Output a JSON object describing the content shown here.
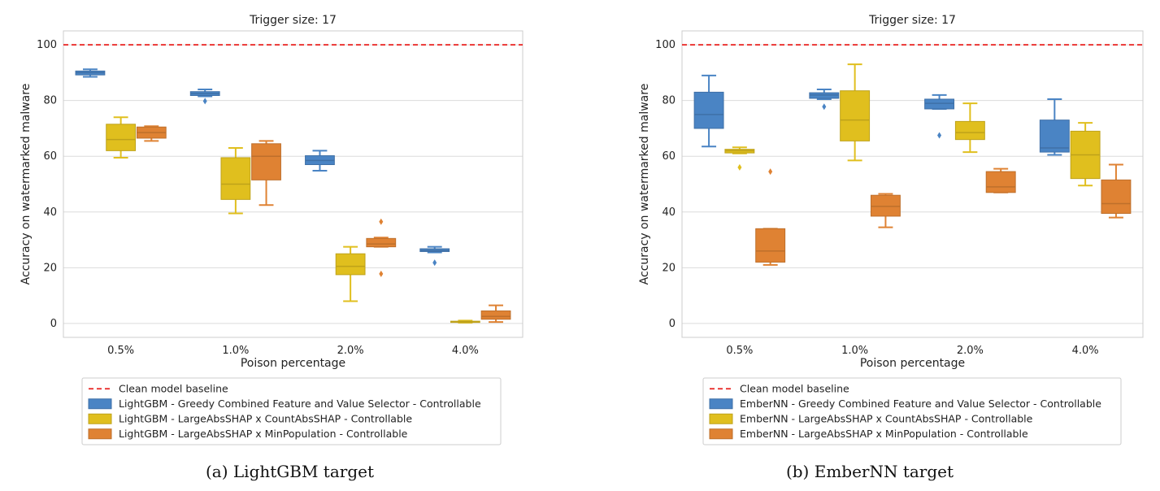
{
  "chart_data": [
    {
      "type": "box",
      "title": "Trigger size: 17",
      "xlabel": "Poison percentage",
      "ylabel": "Accuracy on watermarked malware",
      "categories": [
        "0.5%",
        "1.0%",
        "2.0%",
        "4.0%"
      ],
      "ylim": [
        -5,
        105
      ],
      "yticks": [
        0,
        20,
        40,
        60,
        80,
        100
      ],
      "grid": "horizontal",
      "legend_position": "bottom",
      "baseline": {
        "name": "Clean model baseline",
        "value": 100,
        "color": "#e8211f"
      },
      "series": [
        {
          "name": "LightGBM - Greedy Combined Feature and Value Selector - Controllable",
          "color": "#4a84c4",
          "boxes": [
            {
              "whislo": 88.5,
              "q1": 89.2,
              "med": 90.0,
              "q3": 90.6,
              "whishi": 91.2,
              "fliers": []
            },
            {
              "whislo": 81.5,
              "q1": 81.8,
              "med": 82.5,
              "q3": 83.2,
              "whishi": 84.0,
              "fliers": [
                79.8
              ]
            },
            {
              "whislo": 54.8,
              "q1": 57.0,
              "med": 58.5,
              "q3": 60.2,
              "whishi": 62.0,
              "fliers": []
            },
            {
              "whislo": 25.5,
              "q1": 25.8,
              "med": 26.2,
              "q3": 26.8,
              "whishi": 27.5,
              "fliers": [
                21.8
              ]
            }
          ]
        },
        {
          "name": "LightGBM - LargeAbsSHAP x CountAbsSHAP - Controllable",
          "color": "#e0bf1e",
          "boxes": [
            {
              "whislo": 59.5,
              "q1": 62.0,
              "med": 66.0,
              "q3": 71.5,
              "whishi": 74.0,
              "fliers": []
            },
            {
              "whislo": 39.5,
              "q1": 44.5,
              "med": 50.0,
              "q3": 59.5,
              "whishi": 63.0,
              "fliers": []
            },
            {
              "whislo": 8.0,
              "q1": 17.5,
              "med": 20.5,
              "q3": 25.0,
              "whishi": 27.5,
              "fliers": []
            },
            {
              "whislo": 0.3,
              "q1": 0.5,
              "med": 0.6,
              "q3": 0.8,
              "whishi": 1.0,
              "fliers": []
            }
          ]
        },
        {
          "name": "LightGBM - LargeAbsSHAP x MinPopulation - Controllable",
          "color": "#df8233",
          "boxes": [
            {
              "whislo": 65.5,
              "q1": 66.5,
              "med": 68.5,
              "q3": 70.5,
              "whishi": 70.8,
              "fliers": []
            },
            {
              "whislo": 42.5,
              "q1": 51.5,
              "med": 60.0,
              "q3": 64.5,
              "whishi": 65.5,
              "fliers": []
            },
            {
              "whislo": 27.5,
              "q1": 27.5,
              "med": 28.5,
              "q3": 30.5,
              "whishi": 30.8,
              "fliers": [
                36.5,
                17.8
              ]
            },
            {
              "whislo": 0.5,
              "q1": 1.5,
              "med": 2.5,
              "q3": 4.5,
              "whishi": 6.5,
              "fliers": []
            }
          ]
        }
      ],
      "caption": "(a) LightGBM target"
    },
    {
      "type": "box",
      "title": "Trigger size: 17",
      "xlabel": "Poison percentage",
      "ylabel": "Accuracy on watermarked malware",
      "categories": [
        "0.5%",
        "1.0%",
        "2.0%",
        "4.0%"
      ],
      "ylim": [
        -5,
        105
      ],
      "yticks": [
        0,
        20,
        40,
        60,
        80,
        100
      ],
      "grid": "horizontal",
      "legend_position": "bottom",
      "baseline": {
        "name": "Clean model baseline",
        "value": 100,
        "color": "#e8211f"
      },
      "series": [
        {
          "name": "EmberNN - Greedy Combined Feature and Value Selector - Controllable",
          "color": "#4a84c4",
          "boxes": [
            {
              "whislo": 63.5,
              "q1": 70.0,
              "med": 75.0,
              "q3": 83.0,
              "whishi": 89.0,
              "fliers": []
            },
            {
              "whislo": 80.5,
              "q1": 80.8,
              "med": 82.0,
              "q3": 82.8,
              "whishi": 84.0,
              "fliers": [
                77.8
              ]
            },
            {
              "whislo": 77.0,
              "q1": 77.0,
              "med": 79.0,
              "q3": 80.5,
              "whishi": 82.0,
              "fliers": [
                67.5
              ]
            },
            {
              "whislo": 60.5,
              "q1": 61.5,
              "med": 63.0,
              "q3": 73.0,
              "whishi": 80.5,
              "fliers": []
            }
          ]
        },
        {
          "name": "EmberNN - LargeAbsSHAP x CountAbsSHAP - Controllable",
          "color": "#e0bf1e",
          "boxes": [
            {
              "whislo": 61.0,
              "q1": 61.2,
              "med": 62.0,
              "q3": 62.5,
              "whishi": 63.2,
              "fliers": [
                56.0
              ]
            },
            {
              "whislo": 58.5,
              "q1": 65.5,
              "med": 73.0,
              "q3": 83.5,
              "whishi": 93.0,
              "fliers": []
            },
            {
              "whislo": 61.5,
              "q1": 66.0,
              "med": 68.5,
              "q3": 72.5,
              "whishi": 79.0,
              "fliers": []
            },
            {
              "whislo": 49.5,
              "q1": 52.0,
              "med": 60.5,
              "q3": 69.0,
              "whishi": 72.0,
              "fliers": []
            }
          ]
        },
        {
          "name": "EmberNN - LargeAbsSHAP x MinPopulation - Controllable",
          "color": "#df8233",
          "boxes": [
            {
              "whislo": 21.0,
              "q1": 22.0,
              "med": 26.0,
              "q3": 34.0,
              "whishi": 34.0,
              "fliers": [
                54.5
              ]
            },
            {
              "whislo": 34.5,
              "q1": 38.5,
              "med": 42.0,
              "q3": 46.0,
              "whishi": 46.5,
              "fliers": []
            },
            {
              "whislo": 47.0,
              "q1": 47.0,
              "med": 49.0,
              "q3": 54.5,
              "whishi": 55.5,
              "fliers": []
            },
            {
              "whislo": 38.0,
              "q1": 39.5,
              "med": 43.0,
              "q3": 51.5,
              "whishi": 57.0,
              "fliers": []
            }
          ]
        }
      ],
      "caption": "(b) EmberNN target"
    }
  ]
}
